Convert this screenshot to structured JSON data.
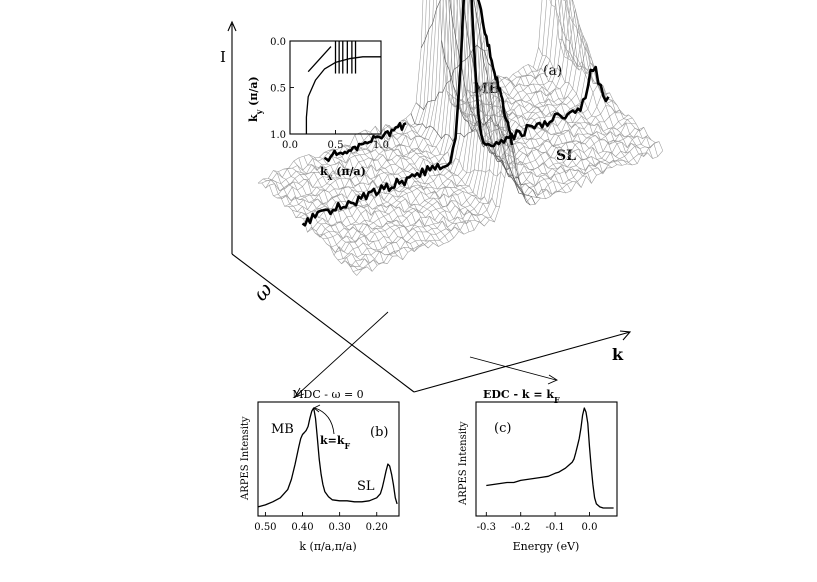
{
  "chart_data": [
    {
      "panel": "a",
      "type": "surface",
      "panel_label": "(a)",
      "axes": {
        "vertical": "I",
        "depth": "ω",
        "horizontal": "k"
      },
      "annotations": [
        "MB",
        "SL"
      ]
    },
    {
      "panel": "a-inset",
      "type": "line",
      "xlabel": "k",
      "xlabel_sub": "x",
      "xlabel_unit": " (π/a)",
      "ylabel": "k",
      "ylabel_sub": "y",
      "ylabel_unit": " (π/a)",
      "xlim": [
        0,
        1.0
      ],
      "ylim": [
        0,
        1.0
      ],
      "y_inverted": true,
      "x_ticks": [
        "0.0",
        "0.5",
        "1.0"
      ],
      "y_ticks": [
        "0.0",
        "0.5",
        "1.0"
      ],
      "fermi_surface": [
        [
          0.18,
          1.0
        ],
        [
          0.18,
          0.82
        ],
        [
          0.2,
          0.6
        ],
        [
          0.28,
          0.42
        ],
        [
          0.38,
          0.3
        ],
        [
          0.5,
          0.23
        ],
        [
          0.65,
          0.19
        ],
        [
          0.8,
          0.17
        ],
        [
          1.0,
          0.17
        ]
      ],
      "cut": [
        [
          0.2,
          0.33
        ],
        [
          0.45,
          0.06
        ]
      ],
      "vertical_cuts_x": [
        0.5,
        0.54,
        0.58,
        0.63,
        0.68,
        0.72
      ],
      "vertical_cuts_y": [
        0.0,
        0.35
      ]
    },
    {
      "panel": "b",
      "type": "line",
      "title": "MDC - ω = 0",
      "panel_label": "(b)",
      "xlabel": "k (π/a,π/a)",
      "ylabel": "ARPES Intensity",
      "xlim": [
        0.52,
        0.14
      ],
      "x_ticks": [
        "0.50",
        "0.40",
        "0.30",
        "0.20"
      ],
      "x_tick_values": [
        0.5,
        0.4,
        0.3,
        0.2
      ],
      "annotations": [
        "MB",
        "SL"
      ],
      "kf_label": "k=k",
      "kf_label_sub": "F",
      "x": [
        0.52,
        0.5,
        0.48,
        0.46,
        0.44,
        0.43,
        0.42,
        0.41,
        0.405,
        0.4,
        0.395,
        0.39,
        0.385,
        0.38,
        0.375,
        0.37,
        0.365,
        0.36,
        0.355,
        0.35,
        0.345,
        0.34,
        0.33,
        0.32,
        0.3,
        0.28,
        0.26,
        0.24,
        0.22,
        0.2,
        0.19,
        0.185,
        0.18,
        0.175,
        0.17,
        0.165,
        0.16,
        0.155,
        0.15,
        0.145
      ],
      "values": [
        0.03,
        0.05,
        0.08,
        0.12,
        0.2,
        0.3,
        0.45,
        0.62,
        0.7,
        0.74,
        0.76,
        0.78,
        0.82,
        0.9,
        0.97,
        1.0,
        0.9,
        0.7,
        0.5,
        0.35,
        0.25,
        0.18,
        0.13,
        0.1,
        0.09,
        0.09,
        0.08,
        0.08,
        0.09,
        0.12,
        0.16,
        0.22,
        0.3,
        0.38,
        0.45,
        0.43,
        0.35,
        0.25,
        0.12,
        0.06
      ]
    },
    {
      "panel": "c",
      "type": "line",
      "title": "EDC - k = k",
      "title_sub": "F",
      "panel_label": "(c)",
      "xlabel": "Energy (eV)",
      "ylabel": "ARPES Intensity",
      "xlim": [
        -0.33,
        0.08
      ],
      "x_ticks": [
        "-0.3",
        "-0.2",
        "-0.1",
        "0.0"
      ],
      "x_tick_values": [
        -0.3,
        -0.2,
        -0.1,
        0.0
      ],
      "x": [
        -0.3,
        -0.28,
        -0.26,
        -0.24,
        -0.22,
        -0.2,
        -0.18,
        -0.16,
        -0.14,
        -0.12,
        -0.1,
        -0.09,
        -0.08,
        -0.07,
        -0.06,
        -0.05,
        -0.045,
        -0.04,
        -0.035,
        -0.03,
        -0.025,
        -0.02,
        -0.015,
        -0.01,
        -0.005,
        0.0,
        0.005,
        0.01,
        0.015,
        0.02,
        0.03,
        0.04,
        0.05,
        0.06,
        0.07
      ],
      "values": [
        0.24,
        0.25,
        0.26,
        0.27,
        0.27,
        0.29,
        0.3,
        0.31,
        0.32,
        0.33,
        0.36,
        0.37,
        0.39,
        0.41,
        0.44,
        0.47,
        0.5,
        0.56,
        0.63,
        0.7,
        0.8,
        0.93,
        1.0,
        0.96,
        0.85,
        0.62,
        0.42,
        0.25,
        0.12,
        0.06,
        0.03,
        0.02,
        0.02,
        0.02,
        0.02
      ]
    }
  ]
}
